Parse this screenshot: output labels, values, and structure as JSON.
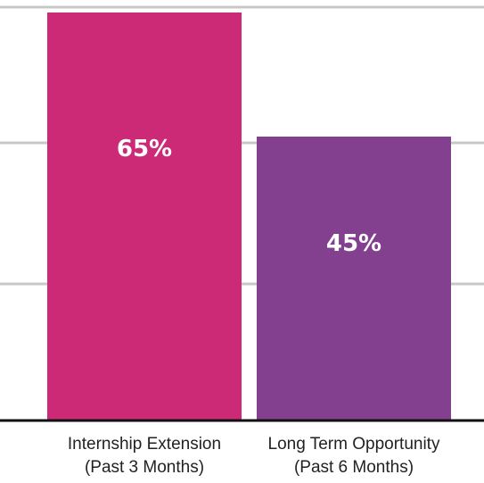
{
  "chart_data": {
    "type": "bar",
    "categories": [
      [
        "Internship Extension",
        "(Past 3 Months)"
      ],
      [
        "Long Term Opportunity",
        "(Past 6 Months)"
      ]
    ],
    "values": [
      65,
      45
    ],
    "data_labels": [
      "65%",
      "45%"
    ],
    "colors": [
      "#cc2a77",
      "#83408f"
    ],
    "ylim": [
      0,
      70
    ],
    "grid": true,
    "legend": "none"
  }
}
